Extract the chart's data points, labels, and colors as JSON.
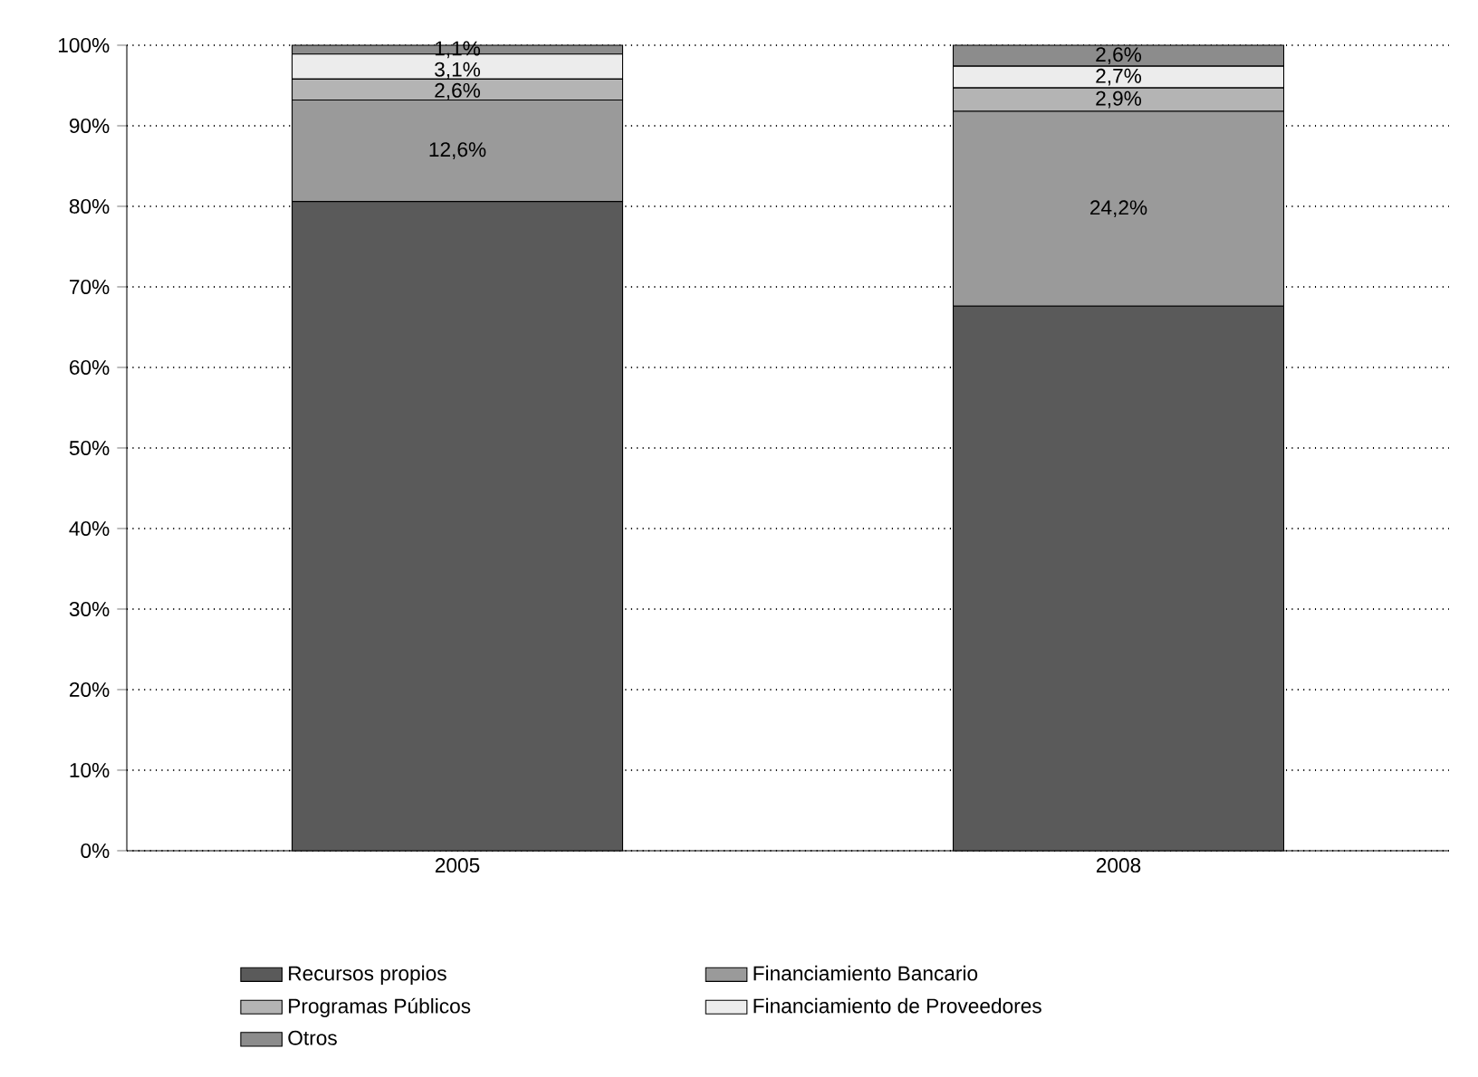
{
  "chart_data": {
    "type": "bar",
    "stacked": true,
    "categories": [
      "2005",
      "2008"
    ],
    "series": [
      {
        "name": "Recursos propios",
        "color": "#5a5a5a",
        "values": [
          80.6,
          67.6
        ],
        "value_labels": [
          null,
          null
        ]
      },
      {
        "name": "Financiamiento Bancario",
        "color": "#9a9a9a",
        "values": [
          12.6,
          24.2
        ],
        "value_labels": [
          "12,6%",
          "24,2%"
        ]
      },
      {
        "name": "Programas Públicos",
        "color": "#b4b4b4",
        "values": [
          2.6,
          2.9
        ],
        "value_labels": [
          "2,6%",
          "2,9%"
        ]
      },
      {
        "name": "Financiamiento de Proveedores",
        "color": "#ececec",
        "values": [
          3.1,
          2.7
        ],
        "value_labels": [
          "3,1%",
          "2,7%"
        ]
      },
      {
        "name": "Otros",
        "color": "#8c8c8c",
        "values": [
          1.1,
          2.6
        ],
        "value_labels": [
          "1,1%",
          "2,6%"
        ]
      }
    ],
    "ylim": [
      0,
      100
    ],
    "yticks": [
      {
        "value": 0,
        "label": "0%"
      },
      {
        "value": 10,
        "label": "10%"
      },
      {
        "value": 20,
        "label": "20%"
      },
      {
        "value": 30,
        "label": "30%"
      },
      {
        "value": 40,
        "label": "40%"
      },
      {
        "value": 50,
        "label": "50%"
      },
      {
        "value": 60,
        "label": "60%"
      },
      {
        "value": 70,
        "label": "70%"
      },
      {
        "value": 80,
        "label": "80%"
      },
      {
        "value": 90,
        "label": "90%"
      },
      {
        "value": 100,
        "label": "100%"
      }
    ],
    "grid": "y",
    "legend": "bottom"
  }
}
